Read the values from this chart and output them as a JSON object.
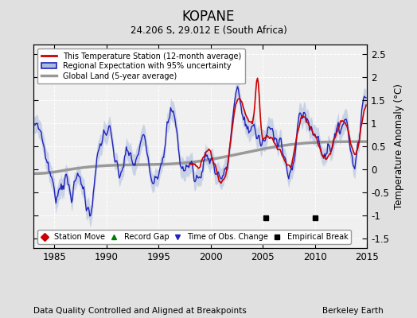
{
  "title": "KOPANE",
  "subtitle": "24.206 S, 29.012 E (South Africa)",
  "ylabel": "Temperature Anomaly (°C)",
  "xlim": [
    1983,
    2015
  ],
  "ylim": [
    -1.7,
    2.7
  ],
  "yticks": [
    -1.5,
    -1.0,
    -0.5,
    0.0,
    0.5,
    1.0,
    1.5,
    2.0,
    2.5
  ],
  "xticks": [
    1985,
    1990,
    1995,
    2000,
    2005,
    2010,
    2015
  ],
  "background_color": "#e0e0e0",
  "plot_bg_color": "#f0f0f0",
  "station_color": "#cc0000",
  "regional_color": "#2222bb",
  "regional_fill_color": "#aabbdd",
  "global_color": "#999999",
  "empirical_breaks": [
    2005.3,
    2010.0
  ],
  "time_of_obs": [],
  "footer_left": "Data Quality Controlled and Aligned at Breakpoints",
  "footer_right": "Berkeley Earth"
}
